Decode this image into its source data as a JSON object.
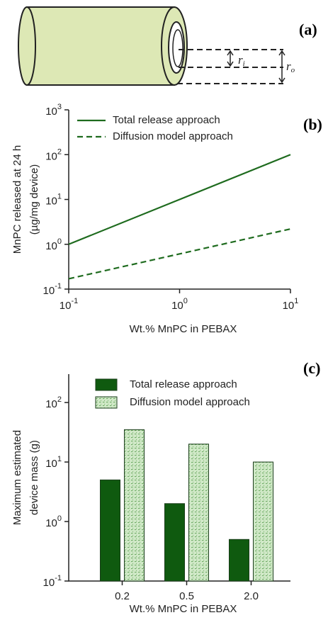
{
  "diagram": {
    "panel_label": "(a)",
    "inner_radius": {
      "symbol": "r",
      "subscript": "i"
    },
    "outer_radius": {
      "symbol": "r",
      "subscript": "o"
    }
  },
  "chart_data": [
    {
      "type": "line",
      "panel_label": "(b)",
      "y_label": [
        "MnPC released at 24 h",
        "(µg/mg device)"
      ],
      "x_label": "Wt.% MnPC in PEBAX",
      "x": [
        0.1,
        1,
        10
      ],
      "series": [
        {
          "name": "Total release approach",
          "color": "#1e6b1e",
          "dash": false,
          "values": [
            1,
            10,
            100
          ]
        },
        {
          "name": "Diffusion model approach",
          "color": "#1e6b1e",
          "dash": true,
          "values": [
            0.17,
            0.61,
            2.2
          ]
        }
      ],
      "xscale": "log",
      "yscale": "log",
      "xlim": [
        0.1,
        10
      ],
      "ylim": [
        0.1,
        1000
      ],
      "xticks": [
        {
          "value": 0.1,
          "label": "10",
          "exponent": "-1"
        },
        {
          "value": 1,
          "label": "10",
          "exponent": "0"
        },
        {
          "value": 10,
          "label": "10",
          "exponent": "1"
        }
      ],
      "yticks": [
        {
          "value": 0.1,
          "label": "10",
          "exponent": "-1"
        },
        {
          "value": 1,
          "label": "10",
          "exponent": "0"
        },
        {
          "value": 10,
          "label": "10",
          "exponent": "1"
        },
        {
          "value": 100,
          "label": "10",
          "exponent": "2"
        },
        {
          "value": 1000,
          "label": "10",
          "exponent": "3"
        }
      ],
      "legend": "top-left"
    },
    {
      "type": "bar",
      "panel_label": "(c)",
      "y_label": [
        "Maximum estimated",
        "device mass (g)"
      ],
      "x_label": "Wt.% MnPC in PEBAX",
      "categories": [
        "0.2",
        "0.5",
        "2.0"
      ],
      "series": [
        {
          "name": "Total release approach",
          "color": "#0f5a0f",
          "hatch": false,
          "values": [
            5,
            2,
            0.5
          ]
        },
        {
          "name": "Diffusion model approach",
          "color": "#cfe8c6",
          "hatch": true,
          "values": [
            35,
            20,
            10
          ]
        }
      ],
      "yscale": "log",
      "ylim": [
        0.1,
        300
      ],
      "yticks": [
        {
          "value": 0.1,
          "label": "10",
          "exponent": "-1"
        },
        {
          "value": 1,
          "label": "10",
          "exponent": "0"
        },
        {
          "value": 10,
          "label": "10",
          "exponent": "1"
        },
        {
          "value": 100,
          "label": "10",
          "exponent": "2"
        }
      ],
      "legend": "top-left"
    }
  ]
}
